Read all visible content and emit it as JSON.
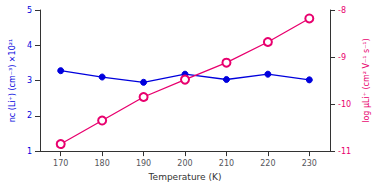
{
  "chart_data": {
    "type": "line",
    "x": [
      170,
      180,
      190,
      200,
      210,
      220,
      230
    ],
    "xlabel": "Temperature (K)",
    "xlim": [
      165,
      235
    ],
    "xticks": [
      170,
      180,
      190,
      200,
      210,
      220,
      230
    ],
    "ylabel": "nc (Li⁺) (cm⁻³) ×10²¹",
    "ylim": [
      1,
      5
    ],
    "yticks": [
      1,
      2,
      3,
      4,
      5
    ],
    "y2label": "log μLi⁺ (cm² V⁻¹ s⁻¹)",
    "y2lim": [
      -11,
      -8
    ],
    "y2ticks": [
      -11,
      -10,
      -9,
      -8
    ],
    "grid": false,
    "series": [
      {
        "values": [
          3.28,
          3.1,
          2.95,
          3.18,
          3.03,
          3.18,
          3.02
        ],
        "color": "#0000dd",
        "marker": "filled"
      },
      {
        "values": [
          -10.85,
          -10.35,
          -9.85,
          -9.48,
          -9.12,
          -8.68,
          -8.18
        ],
        "color": "#e8006e",
        "marker": "open",
        "axis": "y2"
      }
    ]
  }
}
